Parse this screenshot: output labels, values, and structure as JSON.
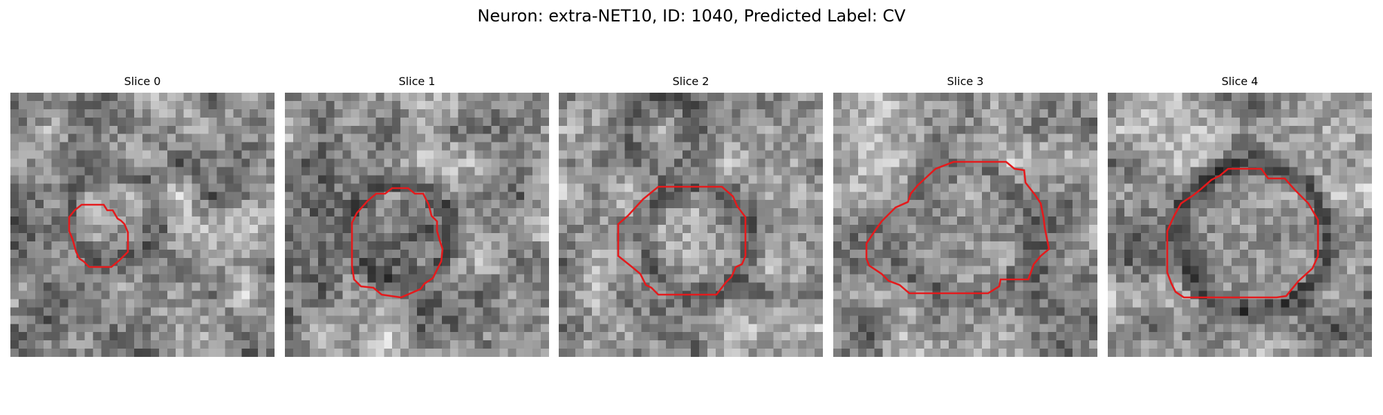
{
  "figure": {
    "title": "Neuron: extra-NET10, ID: 1040, Predicted Label: CV",
    "contour_color": "#e41a1c",
    "colormap": "gray"
  },
  "slices": [
    {
      "label": "Slice 0"
    },
    {
      "label": "Slice 1"
    },
    {
      "label": "Slice 2"
    },
    {
      "label": "Slice 3"
    },
    {
      "label": "Slice 4"
    }
  ]
}
